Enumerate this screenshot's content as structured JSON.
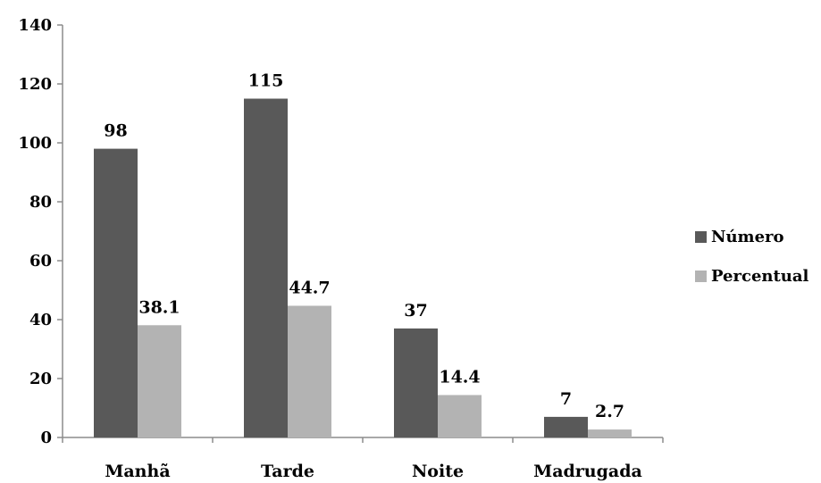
{
  "chart_data": {
    "type": "bar",
    "categories": [
      "Manhã",
      "Tarde",
      "Noite",
      "Madrugada"
    ],
    "series": [
      {
        "name": "Número",
        "values": [
          98,
          115,
          37,
          7
        ],
        "labels": [
          "98",
          "115",
          "37",
          "7"
        ],
        "color": "#595959"
      },
      {
        "name": "Percentual",
        "values": [
          38.1,
          44.7,
          14.4,
          2.7
        ],
        "labels": [
          "38.1",
          "44.7",
          "14.4",
          "2.7"
        ],
        "color": "#b3b3b3"
      }
    ],
    "title": "",
    "xlabel": "",
    "ylabel": "",
    "ylim": [
      0,
      140
    ],
    "yticks": [
      "0",
      "20",
      "40",
      "60",
      "80",
      "100",
      "120",
      "140"
    ],
    "grid": false,
    "legend_position": "right"
  }
}
